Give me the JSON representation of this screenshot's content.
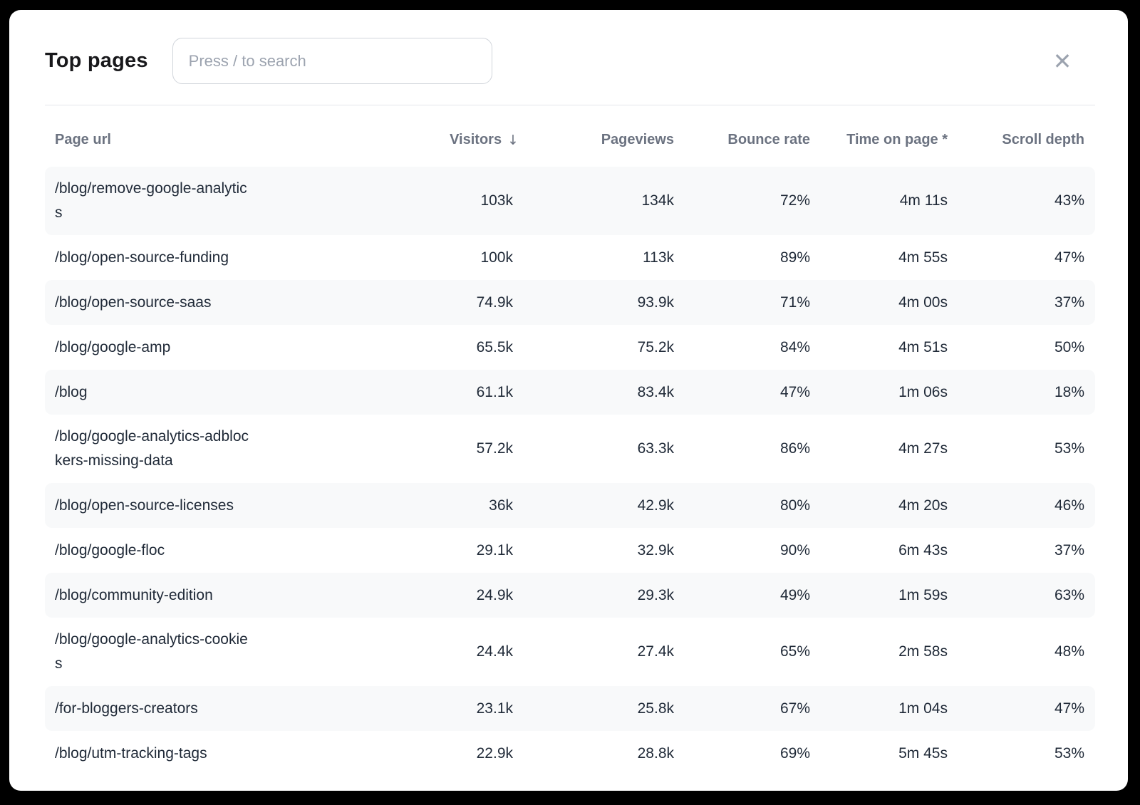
{
  "modal": {
    "title": "Top pages",
    "search_placeholder": "Press / to search"
  },
  "icons": {
    "close": "✕",
    "sort_desc": "↓"
  },
  "table": {
    "columns": [
      {
        "key": "url",
        "label": "Page url",
        "align": "left",
        "sortable": false
      },
      {
        "key": "visitors",
        "label": "Visitors",
        "align": "right",
        "sortable": true,
        "sorted": "desc",
        "sort_icon": "↓"
      },
      {
        "key": "pageviews",
        "label": "Pageviews",
        "align": "right",
        "sortable": true
      },
      {
        "key": "bounce_rate",
        "label": "Bounce rate",
        "align": "right",
        "sortable": true
      },
      {
        "key": "time_on_page",
        "label": "Time on page *",
        "align": "right",
        "sortable": true
      },
      {
        "key": "scroll_depth",
        "label": "Scroll depth",
        "align": "right",
        "sortable": true
      }
    ],
    "rows": [
      {
        "url": "/blog/remove-google-analytics",
        "url_display": "/blog/remove-google-analytic\ns",
        "visitors": "103k",
        "pageviews": "134k",
        "bounce_rate": "72%",
        "time_on_page": "4m 11s",
        "scroll_depth": "43%"
      },
      {
        "url": "/blog/open-source-funding",
        "visitors": "100k",
        "pageviews": "113k",
        "bounce_rate": "89%",
        "time_on_page": "4m 55s",
        "scroll_depth": "47%"
      },
      {
        "url": "/blog/open-source-saas",
        "visitors": "74.9k",
        "pageviews": "93.9k",
        "bounce_rate": "71%",
        "time_on_page": "4m 00s",
        "scroll_depth": "37%"
      },
      {
        "url": "/blog/google-amp",
        "visitors": "65.5k",
        "pageviews": "75.2k",
        "bounce_rate": "84%",
        "time_on_page": "4m 51s",
        "scroll_depth": "50%"
      },
      {
        "url": "/blog",
        "visitors": "61.1k",
        "pageviews": "83.4k",
        "bounce_rate": "47%",
        "time_on_page": "1m 06s",
        "scroll_depth": "18%"
      },
      {
        "url": "/blog/google-analytics-adblockers-missing-data",
        "url_display": "/blog/google-analytics-adbloc\nkers-missing-data",
        "visitors": "57.2k",
        "pageviews": "63.3k",
        "bounce_rate": "86%",
        "time_on_page": "4m 27s",
        "scroll_depth": "53%"
      },
      {
        "url": "/blog/open-source-licenses",
        "visitors": "36k",
        "pageviews": "42.9k",
        "bounce_rate": "80%",
        "time_on_page": "4m 20s",
        "scroll_depth": "46%"
      },
      {
        "url": "/blog/google-floc",
        "visitors": "29.1k",
        "pageviews": "32.9k",
        "bounce_rate": "90%",
        "time_on_page": "6m 43s",
        "scroll_depth": "37%"
      },
      {
        "url": "/blog/community-edition",
        "visitors": "24.9k",
        "pageviews": "29.3k",
        "bounce_rate": "49%",
        "time_on_page": "1m 59s",
        "scroll_depth": "63%"
      },
      {
        "url": "/blog/google-analytics-cookies",
        "url_display": "/blog/google-analytics-cookie\ns",
        "visitors": "24.4k",
        "pageviews": "27.4k",
        "bounce_rate": "65%",
        "time_on_page": "2m 58s",
        "scroll_depth": "48%"
      },
      {
        "url": "/for-bloggers-creators",
        "visitors": "23.1k",
        "pageviews": "25.8k",
        "bounce_rate": "67%",
        "time_on_page": "1m 04s",
        "scroll_depth": "47%"
      },
      {
        "url": "/blog/utm-tracking-tags",
        "visitors": "22.9k",
        "pageviews": "28.8k",
        "bounce_rate": "69%",
        "time_on_page": "5m 45s",
        "scroll_depth": "53%"
      }
    ]
  },
  "colors": {
    "backdrop": "#000000",
    "modal_bg": "#ffffff",
    "row_stripe": "#f8f9fa",
    "divider": "#e5e7eb",
    "header_text": "#6b7280",
    "cell_text": "#1f2937",
    "placeholder_text": "#9ca3af",
    "input_border": "#d1d5db",
    "close_icon": "#9ca3af"
  }
}
